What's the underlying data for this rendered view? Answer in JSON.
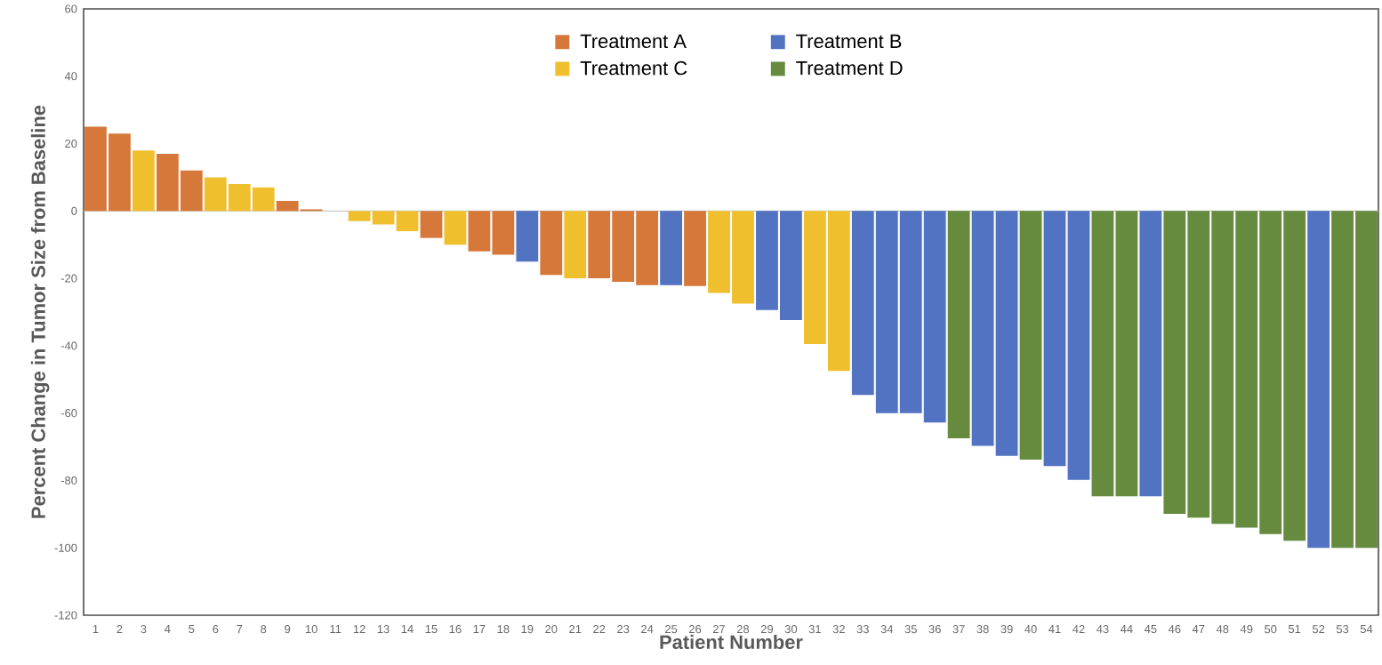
{
  "chart_data": {
    "type": "bar",
    "xlabel": "Patient Number",
    "ylabel": "Percent Change in Tumor Size from Baseline",
    "categories": [
      "1",
      "2",
      "3",
      "4",
      "5",
      "6",
      "7",
      "8",
      "9",
      "10",
      "11",
      "12",
      "13",
      "14",
      "15",
      "16",
      "17",
      "18",
      "19",
      "20",
      "21",
      "22",
      "23",
      "24",
      "25",
      "26",
      "27",
      "28",
      "29",
      "30",
      "31",
      "32",
      "33",
      "34",
      "35",
      "36",
      "37",
      "38",
      "39",
      "40",
      "41",
      "42",
      "43",
      "44",
      "45",
      "46",
      "47",
      "48",
      "49",
      "50",
      "51",
      "52",
      "53",
      "54"
    ],
    "series": [
      {
        "name": "Treatment A",
        "color": "#d6783a",
        "values": [
          25,
          23,
          null,
          17,
          12,
          null,
          null,
          null,
          3,
          0.5,
          0,
          null,
          null,
          null,
          -8,
          null,
          -12,
          -13,
          null,
          -19,
          null,
          -20,
          -21,
          -22,
          null,
          -22.3,
          null,
          null,
          null,
          null,
          null,
          null,
          null,
          null,
          null,
          null,
          null,
          null,
          null,
          null,
          null,
          null,
          null,
          null,
          null,
          null,
          null,
          null,
          null,
          null,
          null,
          null,
          null,
          null
        ]
      },
      {
        "name": "Treatment B",
        "color": "#5272c2",
        "values": [
          null,
          null,
          null,
          null,
          null,
          null,
          null,
          null,
          null,
          null,
          null,
          null,
          null,
          null,
          null,
          null,
          null,
          null,
          -15,
          null,
          null,
          null,
          null,
          null,
          -22,
          null,
          null,
          null,
          -29.4,
          -32.4,
          null,
          null,
          -54.6,
          -60,
          -60,
          -62.8,
          null,
          -69.7,
          -72.7,
          null,
          -75.7,
          -79.8,
          null,
          null,
          -84.7,
          null,
          null,
          null,
          null,
          null,
          null,
          -100,
          null,
          null
        ]
      },
      {
        "name": "Treatment C",
        "color": "#f0bf2e",
        "values": [
          null,
          null,
          18,
          null,
          null,
          10,
          8,
          7,
          null,
          null,
          null,
          -3,
          -4,
          -6,
          null,
          -10,
          null,
          null,
          null,
          null,
          -20,
          null,
          null,
          null,
          null,
          null,
          -24.3,
          -27.5,
          null,
          null,
          -39.5,
          -47.5,
          null,
          null,
          null,
          null,
          null,
          null,
          null,
          null,
          null,
          null,
          null,
          null,
          null,
          null,
          null,
          null,
          null,
          null,
          null,
          null,
          null,
          null
        ]
      },
      {
        "name": "Treatment D",
        "color": "#668a3e",
        "values": [
          null,
          null,
          null,
          null,
          null,
          null,
          null,
          null,
          null,
          null,
          null,
          null,
          null,
          null,
          null,
          null,
          null,
          null,
          null,
          null,
          null,
          null,
          null,
          null,
          null,
          null,
          null,
          null,
          null,
          null,
          null,
          null,
          null,
          null,
          null,
          null,
          -67.5,
          null,
          null,
          -73.8,
          null,
          null,
          -84.7,
          -84.7,
          null,
          -89.9,
          -91,
          -92.9,
          -94,
          -95.9,
          -97.9,
          null,
          -100,
          -100
        ]
      }
    ],
    "ylim": [
      -120,
      60
    ],
    "yticks": [
      -120,
      -100,
      -80,
      -60,
      -40,
      -20,
      0,
      20,
      40,
      60
    ],
    "legend": "top",
    "grid": false,
    "ref_lines": [
      {
        "axis": "y",
        "value": 0,
        "color": "#c8c8c8"
      }
    ]
  }
}
